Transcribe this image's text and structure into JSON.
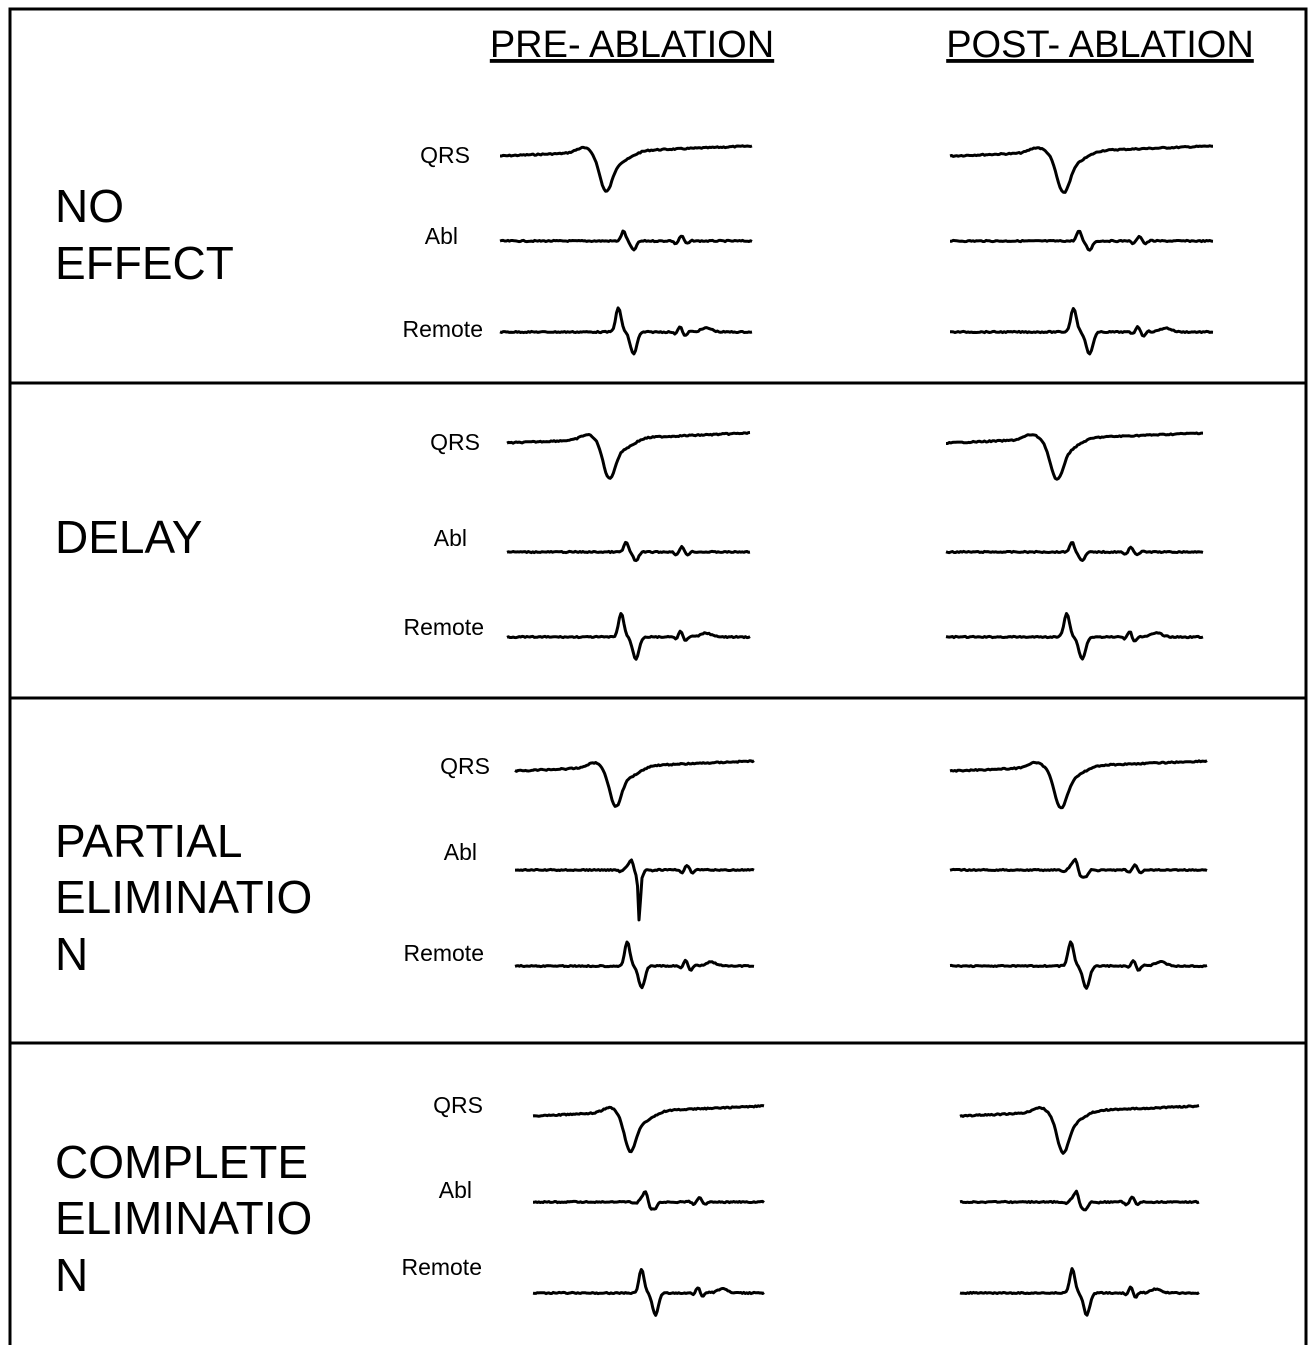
{
  "headers": [
    "PRE- ABLATION",
    "POST- ABLATION"
  ],
  "rows": [
    {
      "label": [
        "NO",
        "EFFECT"
      ],
      "traces": [
        "QRS",
        "Abl",
        "Remote"
      ]
    },
    {
      "label": [
        "DELAY"
      ],
      "traces": [
        "QRS",
        "Abl",
        "Remote"
      ]
    },
    {
      "label": [
        "PARTIAL",
        "ELIMINATIO",
        "N"
      ],
      "traces": [
        "QRS",
        "Abl",
        "Remote"
      ]
    },
    {
      "label": [
        "COMPLETE",
        "ELIMINATIO",
        "N"
      ],
      "traces": [
        "QRS",
        "Abl",
        "Remote"
      ]
    }
  ]
}
